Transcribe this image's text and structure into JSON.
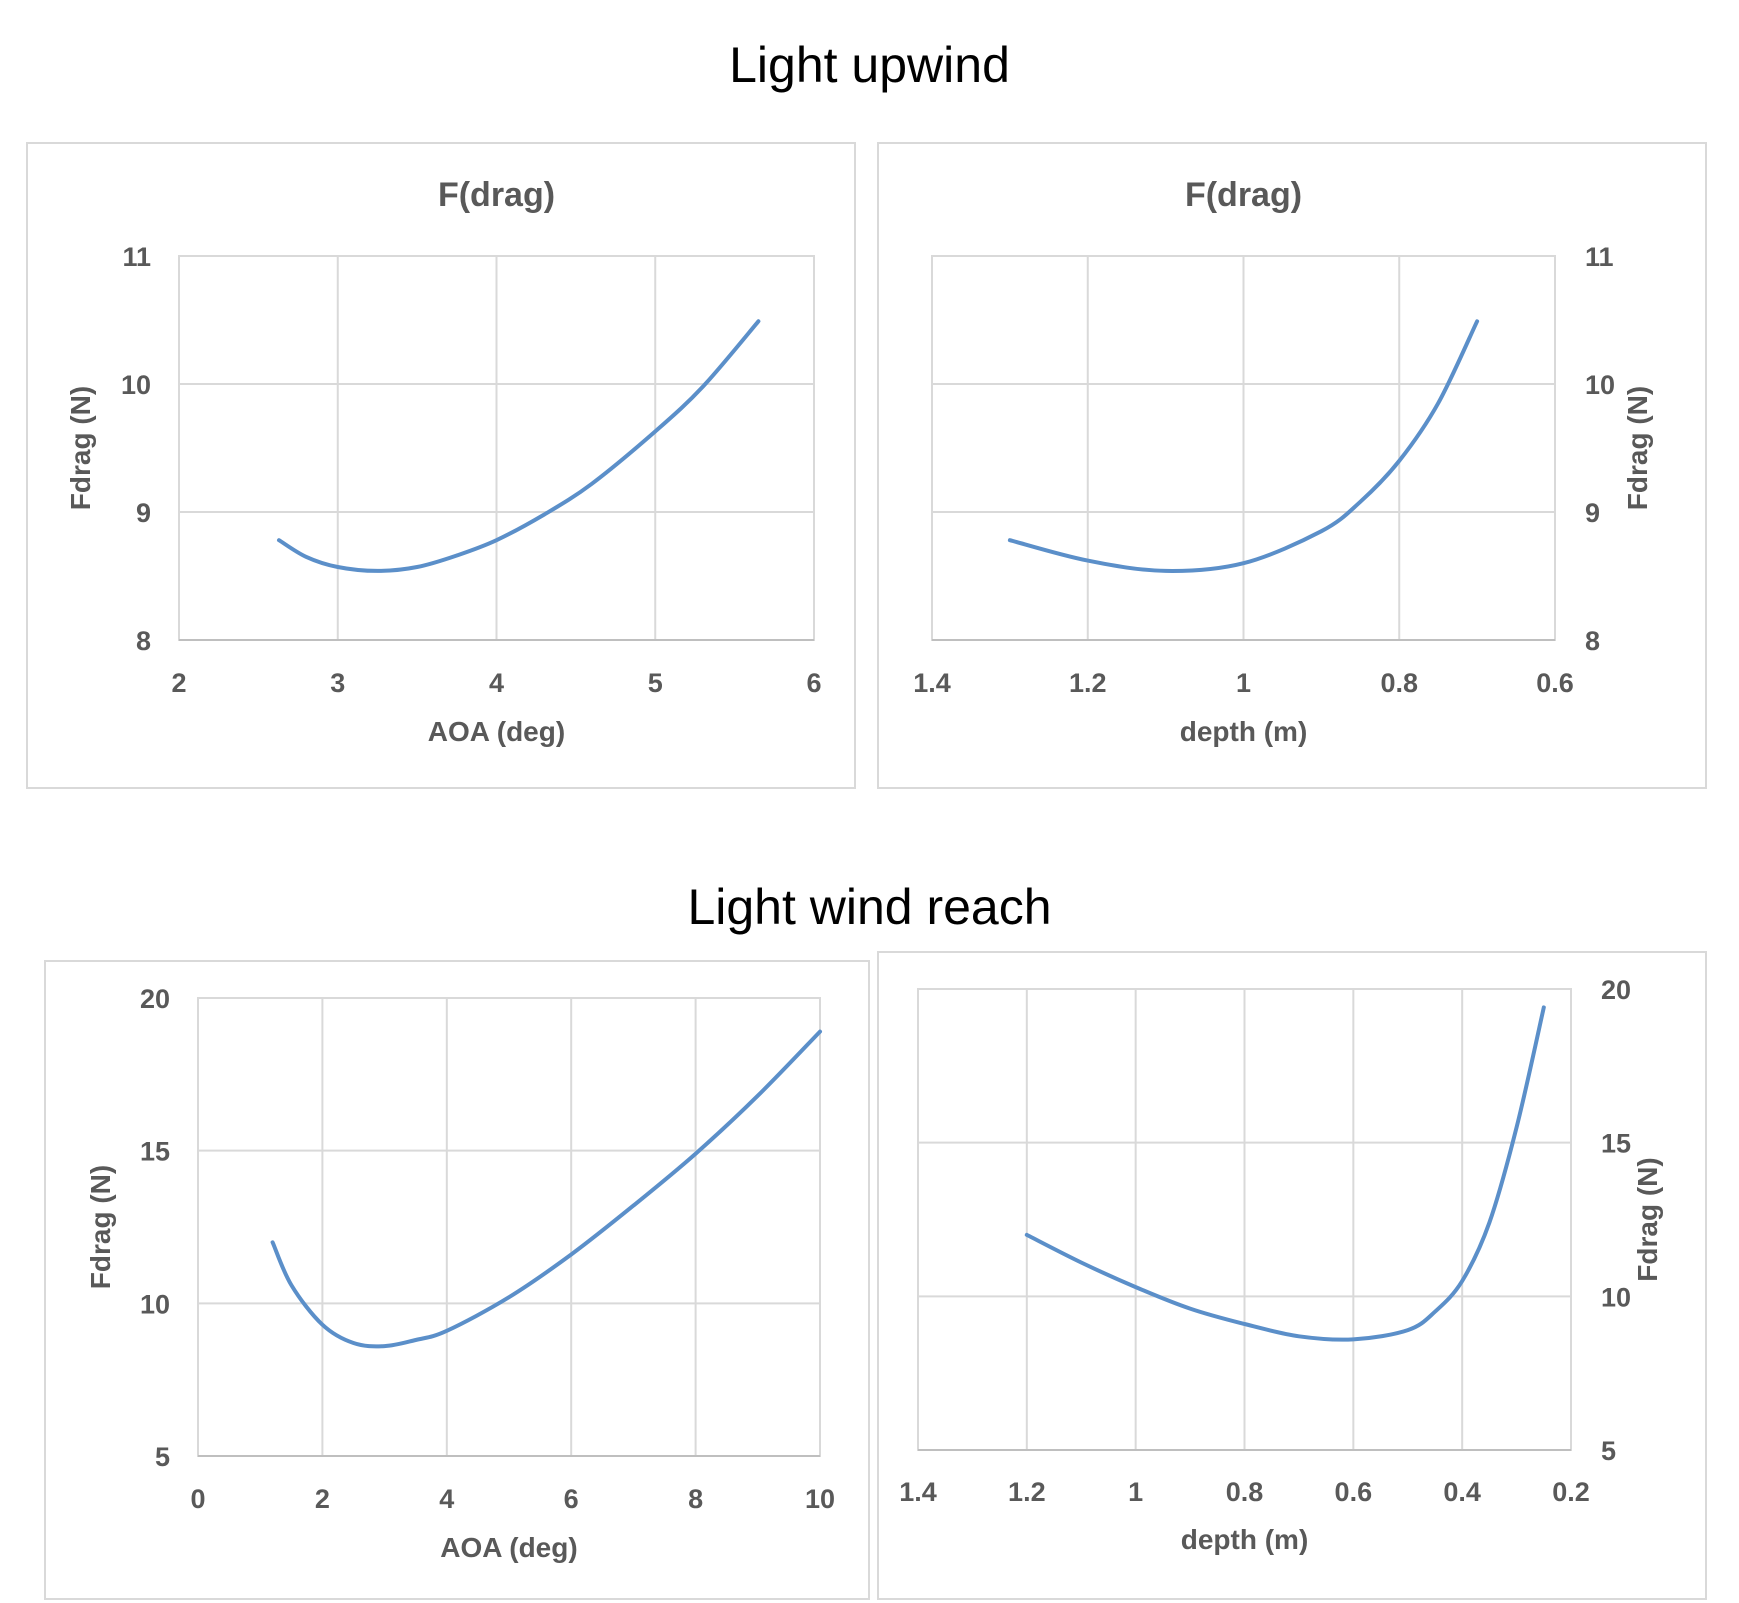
{
  "sections": [
    {
      "title": "Light upwind"
    },
    {
      "title": "Light wind reach"
    }
  ],
  "chart_data": [
    {
      "type": "line",
      "title": "F(drag)",
      "xlabel": "AOA (deg)",
      "ylabel": "Fdrag (N)",
      "xlim": [
        2,
        6
      ],
      "ylim": [
        8,
        11
      ],
      "xticks": [
        "2",
        "3",
        "4",
        "5",
        "6"
      ],
      "yticks": [
        "8",
        "9",
        "10",
        "11"
      ],
      "y_axis_side": "left",
      "x_reversed": false,
      "grid": true,
      "series": [
        {
          "color": "#5b8fc9",
          "x": [
            2.63,
            2.8,
            3.0,
            3.25,
            3.5,
            3.75,
            4.0,
            4.3,
            4.6,
            5.0,
            5.3,
            5.65
          ],
          "y": [
            8.78,
            8.65,
            8.57,
            8.54,
            8.57,
            8.66,
            8.78,
            8.98,
            9.22,
            9.63,
            9.98,
            10.49
          ]
        }
      ]
    },
    {
      "type": "line",
      "title": "F(drag)",
      "xlabel": "depth (m)",
      "ylabel": "Fdrag (N)",
      "xlim": [
        1.4,
        0.6
      ],
      "ylim": [
        8,
        11
      ],
      "xticks": [
        "1.4",
        "1.2",
        "1",
        "0.8",
        "0.6"
      ],
      "yticks": [
        "8",
        "9",
        "10",
        "11"
      ],
      "y_axis_side": "right",
      "x_reversed": true,
      "grid": true,
      "series": [
        {
          "color": "#5b8fc9",
          "x": [
            1.3,
            1.2,
            1.1,
            1.0,
            0.9,
            0.85,
            0.8,
            0.75,
            0.7
          ],
          "y": [
            8.78,
            8.62,
            8.54,
            8.6,
            8.85,
            9.08,
            9.4,
            9.85,
            10.49
          ]
        }
      ]
    },
    {
      "type": "line",
      "title": "",
      "xlabel": "AOA (deg)",
      "ylabel": "Fdrag (N)",
      "xlim": [
        0,
        10
      ],
      "ylim": [
        5,
        20
      ],
      "xticks": [
        "0",
        "2",
        "4",
        "6",
        "8",
        "10"
      ],
      "yticks": [
        "5",
        "10",
        "15",
        "20"
      ],
      "y_axis_side": "left",
      "x_reversed": false,
      "grid": true,
      "series": [
        {
          "color": "#5b8fc9",
          "x": [
            1.2,
            1.5,
            2.0,
            2.5,
            3.0,
            3.5,
            4.0,
            5.0,
            6.0,
            7.0,
            8.0,
            9.0,
            10.0
          ],
          "y": [
            12.0,
            10.6,
            9.3,
            8.7,
            8.6,
            8.8,
            9.1,
            10.2,
            11.6,
            13.2,
            14.9,
            16.8,
            18.9
          ]
        }
      ]
    },
    {
      "type": "line",
      "title": "",
      "xlabel": "depth (m)",
      "ylabel": "Fdrag (N)",
      "xlim": [
        1.4,
        0.2
      ],
      "ylim": [
        5,
        20
      ],
      "xticks": [
        "1.4",
        "1.2",
        "1",
        "0.8",
        "0.6",
        "0.4",
        "0.2"
      ],
      "yticks": [
        "5",
        "10",
        "15",
        "20"
      ],
      "y_axis_side": "right",
      "x_reversed": true,
      "grid": true,
      "series": [
        {
          "color": "#5b8fc9",
          "x": [
            1.2,
            1.1,
            1.0,
            0.9,
            0.8,
            0.7,
            0.6,
            0.5,
            0.45,
            0.4,
            0.35,
            0.3,
            0.25
          ],
          "y": [
            12.0,
            11.1,
            10.3,
            9.6,
            9.1,
            8.7,
            8.6,
            8.9,
            9.5,
            10.5,
            12.4,
            15.5,
            19.4
          ]
        }
      ]
    }
  ]
}
